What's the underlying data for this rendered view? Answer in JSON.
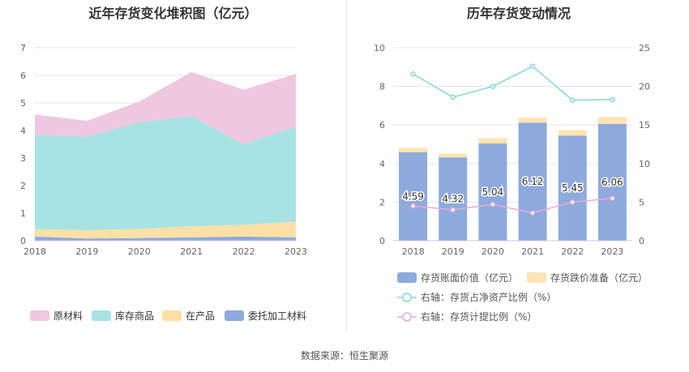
{
  "footer": {
    "source_label": "数据来源：恒生聚源"
  },
  "chart_data": [
    {
      "type": "area",
      "title": "近年存货变化堆积图（亿元）",
      "x": [
        "2018",
        "2019",
        "2020",
        "2021",
        "2022",
        "2023"
      ],
      "ylim": [
        0,
        7
      ],
      "yticks": [
        "0",
        "1",
        "2",
        "3",
        "4",
        "5",
        "6",
        "7"
      ],
      "stacked": true,
      "grid": true,
      "legend_position": "bottom",
      "series": [
        {
          "name": "委托加工材料",
          "color": "#8eaadc",
          "values": [
            0.15,
            0.08,
            0.1,
            0.12,
            0.15,
            0.12
          ]
        },
        {
          "name": "在产品",
          "color": "#fde0a6",
          "values": [
            0.27,
            0.3,
            0.33,
            0.4,
            0.43,
            0.58
          ]
        },
        {
          "name": "库存商品",
          "color": "#a8e3e3",
          "values": [
            3.43,
            3.4,
            3.87,
            4.0,
            2.92,
            3.45
          ]
        },
        {
          "name": "原材料",
          "color": "#efc7e0",
          "values": [
            0.73,
            0.57,
            0.75,
            1.6,
            1.98,
            1.9
          ]
        }
      ]
    },
    {
      "type": "bar",
      "title": "历年存货变动情况",
      "categories": [
        "2018",
        "2019",
        "2020",
        "2021",
        "2022",
        "2023"
      ],
      "ylim_left": [
        0,
        10
      ],
      "yticks_left": [
        "0",
        "2",
        "4",
        "6",
        "8",
        "10"
      ],
      "ylim_right": [
        0,
        25
      ],
      "yticks_right": [
        "0",
        "5",
        "10",
        "15",
        "20",
        "25"
      ],
      "grid": true,
      "legend_position": "bottom",
      "bar_series": [
        {
          "name": "存货账面价值（亿元）",
          "color": "#8eaadc",
          "values": [
            4.59,
            4.32,
            5.04,
            6.12,
            5.45,
            6.06
          ],
          "labels": [
            "4.59",
            "4.32",
            "5.04",
            "6.12",
            "5.45",
            "6.06"
          ]
        },
        {
          "name": "存货跌价准备（亿元）",
          "color": "#fde4b0",
          "values": [
            0.22,
            0.19,
            0.27,
            0.26,
            0.28,
            0.35
          ]
        }
      ],
      "line_series": [
        {
          "name": "右轴：存货占净资产比例（%）",
          "color": "#86d5dc",
          "values": [
            21.6,
            18.6,
            20.0,
            22.6,
            18.2,
            18.3
          ]
        },
        {
          "name": "右轴：存货计提比例（%）",
          "color": "#e8aad4",
          "values": [
            4.5,
            4.0,
            4.7,
            3.6,
            5.0,
            5.5
          ]
        }
      ]
    }
  ]
}
